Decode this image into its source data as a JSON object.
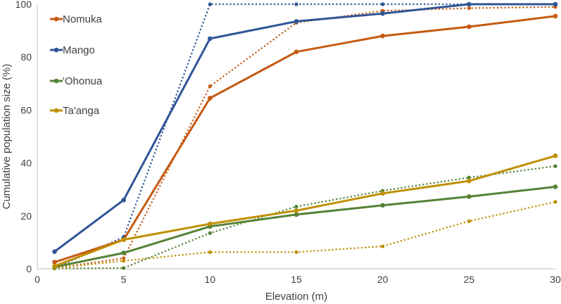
{
  "chart_data": {
    "type": "line",
    "title": "",
    "xlabel": "Elevation (m)",
    "ylabel": "Cumulative population size (%)",
    "xlim": [
      0,
      30
    ],
    "ylim": [
      0,
      100
    ],
    "xticks": [
      0,
      5,
      10,
      15,
      20,
      25,
      30
    ],
    "yticks": [
      0,
      20,
      40,
      60,
      80,
      100
    ],
    "grid": false,
    "legend_position": "top-left",
    "legend_entries": [
      "Nomuka",
      "Mango",
      "'Ohonua",
      "Ta'anga"
    ],
    "series": [
      {
        "name": "Nomuka",
        "style": "solid",
        "color": "#c55a11",
        "x": [
          1,
          5,
          10,
          15,
          20,
          25,
          30
        ],
        "values": [
          2.5,
          11,
          64.5,
          82,
          88,
          91.5,
          95.5
        ]
      },
      {
        "name": "Nomuka (dotted)",
        "style": "dotted",
        "color": "#c55a11",
        "x": [
          1,
          5,
          10,
          15,
          20,
          25,
          30
        ],
        "values": [
          0.3,
          4,
          69,
          93,
          97.5,
          98.5,
          99
        ]
      },
      {
        "name": "Mango",
        "style": "solid",
        "color": "#2f5597",
        "x": [
          1,
          5,
          10,
          15,
          20,
          25,
          30
        ],
        "values": [
          6.5,
          26,
          87,
          93.5,
          96.5,
          100,
          100
        ]
      },
      {
        "name": "Mango (dotted)",
        "style": "dotted",
        "color": "#2f5597",
        "x": [
          1,
          5,
          10,
          15,
          20,
          25,
          30
        ],
        "values": [
          0.2,
          12,
          100,
          100,
          100,
          100,
          100
        ]
      },
      {
        "name": "'Ohonua",
        "style": "solid",
        "color": "#548235",
        "x": [
          1,
          5,
          10,
          15,
          20,
          25,
          30
        ],
        "values": [
          0.7,
          6,
          16,
          20.5,
          24,
          27.3,
          31
        ]
      },
      {
        "name": "'Ohonua (dotted)",
        "style": "dotted",
        "color": "#548235",
        "x": [
          1,
          5,
          10,
          15,
          20,
          25,
          30
        ],
        "values": [
          0.1,
          0.3,
          13.5,
          23.5,
          29.5,
          34.5,
          38.8
        ]
      },
      {
        "name": "Ta'anga",
        "style": "solid",
        "color": "#bf9000",
        "x": [
          1,
          5,
          10,
          15,
          20,
          25,
          30
        ],
        "values": [
          1,
          11,
          17,
          22,
          28.5,
          33.2,
          42.7
        ]
      },
      {
        "name": "Ta'anga (dotted)",
        "style": "dotted",
        "color": "#bf9000",
        "x": [
          1,
          5,
          10,
          15,
          20,
          25,
          30
        ],
        "values": [
          0.2,
          3,
          6.3,
          6.3,
          8.5,
          18,
          25.3
        ]
      }
    ]
  }
}
